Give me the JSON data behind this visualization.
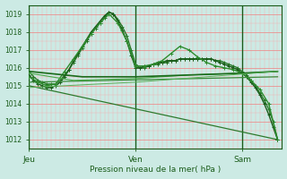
{
  "bg_color": "#cceae4",
  "grid_color_major": "#f08080",
  "grid_color_minor": "#f5b0b0",
  "line_color_dark": "#1a5c1a",
  "xlabel": "Pression niveau de la mer( hPa )",
  "yticks": [
    1012,
    1013,
    1014,
    1015,
    1016,
    1017,
    1018,
    1019
  ],
  "day_positions": [
    0,
    24,
    48
  ],
  "day_labels": [
    "Jeu",
    "Ven",
    "Sam"
  ],
  "xmin": 0,
  "xmax": 57,
  "ymin": 1011.5,
  "ymax": 1019.5,
  "series": [
    {
      "x": [
        0,
        1,
        2,
        3,
        4,
        5,
        6,
        7,
        8,
        9,
        10,
        11,
        12,
        13,
        14,
        15,
        16,
        17,
        18,
        19,
        20,
        21,
        22,
        23,
        24,
        25,
        26,
        27,
        28,
        29,
        30,
        31,
        32,
        33,
        34,
        35,
        36,
        37,
        38,
        39,
        40,
        41,
        42,
        43,
        44,
        45,
        46,
        47,
        48,
        49,
        50,
        51,
        52,
        53,
        54,
        55,
        56
      ],
      "y": [
        1015.8,
        1015.5,
        1015.3,
        1015.2,
        1015.1,
        1015.1,
        1015.1,
        1015.3,
        1015.6,
        1015.9,
        1016.3,
        1016.7,
        1017.1,
        1017.5,
        1017.9,
        1018.2,
        1018.5,
        1018.8,
        1019.1,
        1019.0,
        1018.7,
        1018.3,
        1017.8,
        1017.0,
        1016.2,
        1016.0,
        1016.0,
        1016.1,
        1016.2,
        1016.2,
        1016.3,
        1016.3,
        1016.4,
        1016.4,
        1016.5,
        1016.5,
        1016.5,
        1016.5,
        1016.5,
        1016.5,
        1016.5,
        1016.5,
        1016.4,
        1016.4,
        1016.3,
        1016.2,
        1016.1,
        1016.0,
        1015.8,
        1015.6,
        1015.3,
        1015.0,
        1014.6,
        1014.2,
        1013.7,
        1013.0,
        1012.0
      ],
      "color": "#2a7a2a",
      "lw": 1.0,
      "marker": "+"
    },
    {
      "x": [
        0,
        1,
        2,
        3,
        4,
        5,
        6,
        7,
        8,
        9,
        10,
        11,
        12,
        13,
        14,
        15,
        16,
        17,
        18,
        19,
        20,
        21,
        22,
        23,
        24,
        25,
        26,
        27,
        28,
        29,
        30,
        31,
        32,
        33,
        34,
        35,
        36,
        37,
        38,
        39,
        40,
        41,
        42,
        43,
        44,
        45,
        46,
        47,
        48,
        49,
        50,
        51,
        52,
        53,
        54,
        55,
        56
      ],
      "y": [
        1015.6,
        1015.3,
        1015.1,
        1015.0,
        1014.9,
        1014.9,
        1015.0,
        1015.2,
        1015.5,
        1015.9,
        1016.4,
        1016.8,
        1017.2,
        1017.6,
        1018.0,
        1018.3,
        1018.6,
        1018.9,
        1019.1,
        1019.0,
        1018.6,
        1018.1,
        1017.5,
        1016.7,
        1016.0,
        1016.0,
        1016.1,
        1016.1,
        1016.2,
        1016.3,
        1016.3,
        1016.4,
        1016.4,
        1016.4,
        1016.5,
        1016.5,
        1016.5,
        1016.5,
        1016.5,
        1016.5,
        1016.5,
        1016.5,
        1016.4,
        1016.3,
        1016.2,
        1016.1,
        1016.0,
        1015.9,
        1015.7,
        1015.5,
        1015.2,
        1014.9,
        1014.5,
        1014.0,
        1013.4,
        1012.7,
        1012.0
      ],
      "color": "#1a5c1a",
      "lw": 1.0,
      "marker": "+"
    },
    {
      "x": [
        0,
        2,
        4,
        6,
        8,
        10,
        12,
        14,
        16,
        18,
        20,
        22,
        24,
        26,
        28,
        30,
        32,
        34,
        36,
        38,
        40,
        42,
        44,
        46,
        48,
        50,
        52,
        54,
        56
      ],
      "y": [
        1015.5,
        1015.2,
        1015.0,
        1015.1,
        1015.8,
        1016.5,
        1017.2,
        1017.9,
        1018.5,
        1019.0,
        1018.5,
        1017.5,
        1016.1,
        1016.1,
        1016.2,
        1016.4,
        1016.8,
        1017.2,
        1017.0,
        1016.6,
        1016.3,
        1016.1,
        1016.0,
        1015.9,
        1015.7,
        1015.3,
        1014.8,
        1014.0,
        1012.0
      ],
      "color": "#2d8c2d",
      "lw": 1.0,
      "marker": "+"
    },
    {
      "x": [
        0,
        56
      ],
      "y": [
        1015.0,
        1012.0
      ],
      "color": "#2d7a2d",
      "lw": 0.9,
      "marker": null
    },
    {
      "x": [
        0,
        56
      ],
      "y": [
        1015.2,
        1015.5
      ],
      "color": "#3a8c3a",
      "lw": 0.9,
      "marker": null
    },
    {
      "x": [
        0,
        10,
        24,
        36,
        48,
        56
      ],
      "y": [
        1015.7,
        1015.3,
        1015.4,
        1015.6,
        1015.7,
        1015.8
      ],
      "color": "#4aaa4a",
      "lw": 0.8,
      "marker": null
    },
    {
      "x": [
        0,
        12,
        24,
        36,
        48,
        56
      ],
      "y": [
        1015.8,
        1015.5,
        1015.5,
        1015.6,
        1015.7,
        1015.8
      ],
      "color": "#1a6b1a",
      "lw": 1.2,
      "marker": null
    },
    {
      "x": [
        0,
        24,
        56
      ],
      "y": [
        1014.9,
        1015.2,
        1015.8
      ],
      "color": "#5ab05a",
      "lw": 0.7,
      "marker": null
    }
  ]
}
